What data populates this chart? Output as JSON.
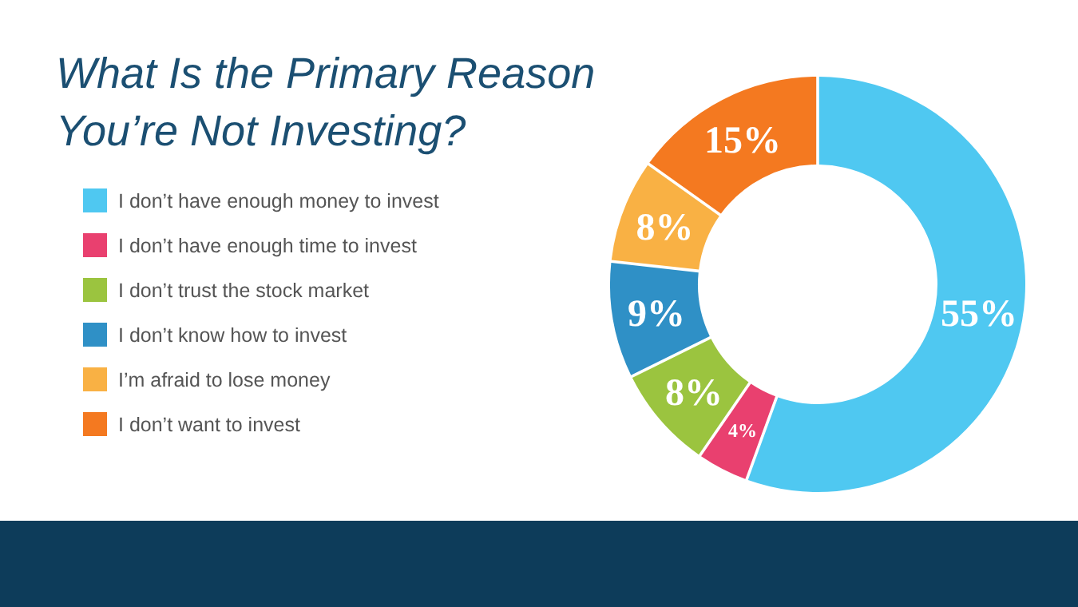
{
  "chart_data": {
    "type": "donut",
    "title": "What Is the Primary Reason You’re Not Investing?",
    "categories": [
      "I don’t have enough money to invest",
      "I don’t have enough time to invest",
      "I don’t trust the stock market",
      "I don’t know how to invest",
      "I’m afraid to lose money",
      "I don’t want to invest"
    ],
    "values": [
      55,
      4,
      8,
      9,
      8,
      15
    ],
    "colors": [
      "#4fc8f1",
      "#e9406f",
      "#9bc43f",
      "#2f90c6",
      "#f9b144",
      "#f47920"
    ],
    "value_labels": [
      "55%",
      "4%",
      "8%",
      "9%",
      "8%",
      "15%"
    ],
    "legend": "left"
  }
}
